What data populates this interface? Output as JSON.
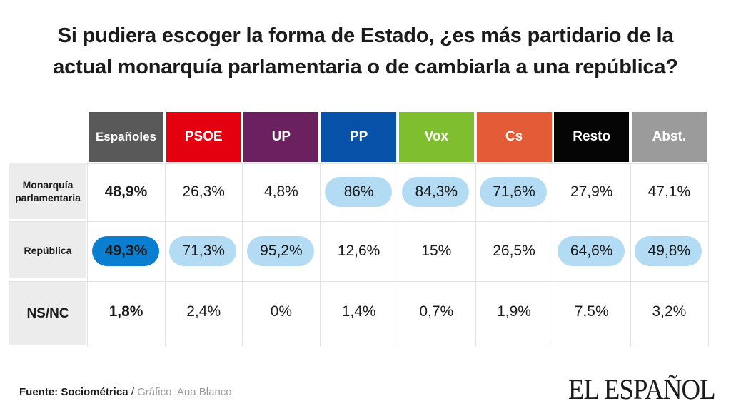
{
  "title_line1": "Si pudiera escoger la forma de Estado, ¿es más partidario de la",
  "title_line2": "actual monarquía parlamentaria o de cambiarla a una república?",
  "chart_data": {
    "type": "table",
    "columns": [
      {
        "label": "Españoles",
        "color": "#595959"
      },
      {
        "label": "PSOE",
        "color": "#e3000f"
      },
      {
        "label": "UP",
        "color": "#6b2060"
      },
      {
        "label": "PP",
        "color": "#0751a8"
      },
      {
        "label": "Vox",
        "color": "#7fbf2f"
      },
      {
        "label": "Cs",
        "color": "#e35c37"
      },
      {
        "label": "Resto",
        "color": "#050505"
      },
      {
        "label": "Abst.",
        "color": "#9b9b9b"
      }
    ],
    "rows": [
      {
        "label_lines": [
          "Monarquía",
          "parlamentaria"
        ],
        "values": [
          "48,9%",
          "26,3%",
          "4,8%",
          "86%",
          "84,3%",
          "71,6%",
          "27,9%",
          "47,1%"
        ],
        "highlight": [
          false,
          false,
          false,
          true,
          true,
          true,
          false,
          false
        ]
      },
      {
        "label_lines": [
          "República"
        ],
        "values": [
          "49,3%",
          "71,3%",
          "95,2%",
          "12,6%",
          "15%",
          "26,5%",
          "64,6%",
          "49,8%"
        ],
        "highlight": [
          true,
          true,
          true,
          false,
          false,
          false,
          true,
          true
        ]
      },
      {
        "label_lines": [
          "NS/NC"
        ],
        "values": [
          "1,8%",
          "2,4%",
          "0%",
          "1,4%",
          "0,7%",
          "1,9%",
          "7,5%",
          "3,2%"
        ],
        "highlight": [
          false,
          false,
          false,
          false,
          false,
          false,
          false,
          false
        ]
      }
    ],
    "highlight_color": "#b3dcf4",
    "highlight_color_total": "#0a7fd1"
  },
  "footer": {
    "source": "Fuente: Sociométrica",
    "sep": " / ",
    "credit": "Gráfico: Ana Blanco"
  },
  "logo": "EL ESPAÑOL"
}
